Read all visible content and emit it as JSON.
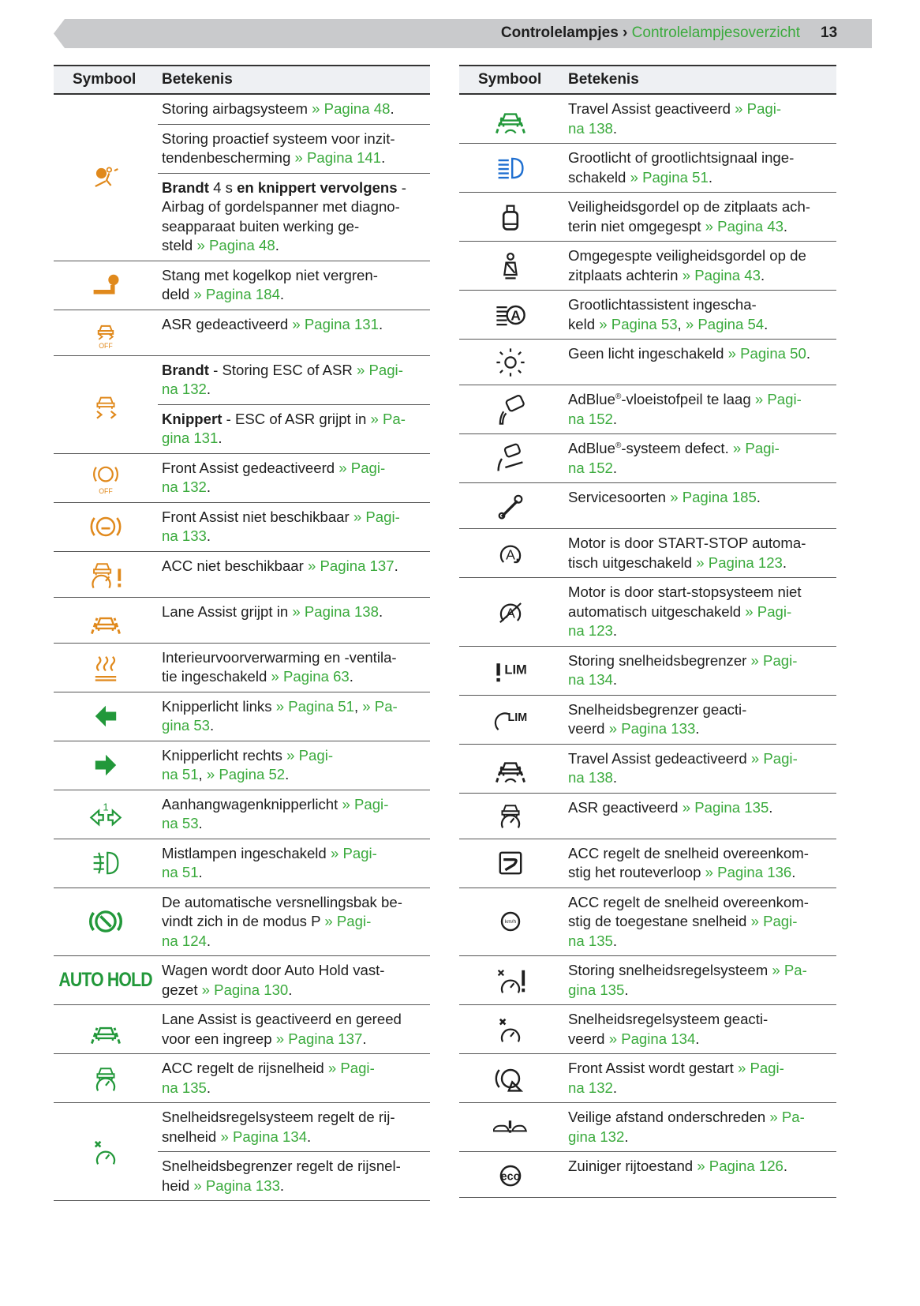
{
  "header": {
    "section": "Controlelampjes",
    "separator": " › ",
    "current": "Controlelampjesoverzicht",
    "page": "13"
  },
  "colors": {
    "orange": "#e0891c",
    "green": "#22983a",
    "link": "#3aaa3c",
    "blue": "#1f6fd0",
    "black": "#1e1e1e"
  },
  "columns": {
    "symbol": "Symbool",
    "meaning": "Betekenis"
  },
  "left": [
    {
      "icon": {
        "name": "airbag-icon",
        "color": "orange"
      },
      "rows": [
        [
          {
            "t": "Storing airbagsysteem "
          },
          {
            "l": "» Pagina 48"
          },
          {
            "t": "."
          }
        ],
        [
          {
            "t": "Storing proactief systeem voor inzit-\ntendenbescherming "
          },
          {
            "l": "» Pagina 141"
          },
          {
            "t": "."
          }
        ],
        [
          {
            "b": "Brandt"
          },
          {
            "t": " 4 s "
          },
          {
            "b": "en knippert vervolgens"
          },
          {
            "t": " -\nAirbag of gordelspanner met diagno-\nseapparaat buiten werking ge-\nsteld "
          },
          {
            "l": "» Pagina 48"
          },
          {
            "t": "."
          }
        ]
      ]
    },
    {
      "icon": {
        "name": "tow-bar-icon",
        "color": "orange"
      },
      "rows": [
        [
          {
            "t": "Stang met kogelkop niet vergren-\ndeld "
          },
          {
            "l": "» Pagina 184"
          },
          {
            "t": "."
          }
        ]
      ]
    },
    {
      "icon": {
        "name": "asr-off-icon",
        "color": "orange",
        "label": "OFF"
      },
      "rows": [
        [
          {
            "t": "ASR gedeactiveerd "
          },
          {
            "l": "» Pagina 131"
          },
          {
            "t": "."
          }
        ]
      ]
    },
    {
      "icon": {
        "name": "esc-skid-icon",
        "color": "orange"
      },
      "rows": [
        [
          {
            "b": "Brandt"
          },
          {
            "t": " - Storing ESC of ASR "
          },
          {
            "l": "» Pagi-\nna 132"
          },
          {
            "t": "."
          }
        ],
        [
          {
            "b": "Knippert"
          },
          {
            "t": " - ESC of ASR grijpt in "
          },
          {
            "l": "» Pa-\ngina 131"
          },
          {
            "t": "."
          }
        ]
      ]
    },
    {
      "icon": {
        "name": "front-assist-off-icon",
        "color": "orange",
        "label": "OFF"
      },
      "rows": [
        [
          {
            "t": "Front Assist gedeactiveerd "
          },
          {
            "l": "» Pagi-\nna 132"
          },
          {
            "t": "."
          }
        ]
      ]
    },
    {
      "icon": {
        "name": "front-assist-icon",
        "color": "orange"
      },
      "rows": [
        [
          {
            "t": "Front Assist niet beschikbaar "
          },
          {
            "l": "» Pagi-\nna 133"
          },
          {
            "t": "."
          }
        ]
      ]
    },
    {
      "icon": {
        "name": "acc-warning-icon",
        "color": "orange"
      },
      "rows": [
        [
          {
            "t": "ACC niet beschikbaar "
          },
          {
            "l": "» Pagina 137"
          },
          {
            "t": "."
          }
        ]
      ]
    },
    {
      "icon": {
        "name": "lane-assist-icon",
        "color": "orange"
      },
      "rows": [
        [
          {
            "t": "Lane Assist grijpt in "
          },
          {
            "l": "» Pagina 138"
          },
          {
            "t": "."
          }
        ]
      ]
    },
    {
      "icon": {
        "name": "heating-icon",
        "color": "orange"
      },
      "rows": [
        [
          {
            "t": "Interieurvoorverwarming en -ventila-\ntie ingeschakeld "
          },
          {
            "l": "» Pagina 63"
          },
          {
            "t": "."
          }
        ]
      ]
    },
    {
      "icon": {
        "name": "turn-left-icon",
        "color": "green"
      },
      "rows": [
        [
          {
            "t": "Knipperlicht links "
          },
          {
            "l": "» Pagina 51"
          },
          {
            "t": ", "
          },
          {
            "l": "» Pa-\ngina 53"
          },
          {
            "t": "."
          }
        ]
      ]
    },
    {
      "icon": {
        "name": "turn-right-icon",
        "color": "green"
      },
      "rows": [
        [
          {
            "t": "Knipperlicht rechts "
          },
          {
            "l": "» Pagi-\nna 51"
          },
          {
            "t": ", "
          },
          {
            "l": "» Pagina 52"
          },
          {
            "t": "."
          }
        ]
      ]
    },
    {
      "icon": {
        "name": "trailer-indicator-icon",
        "color": "green",
        "label": "1"
      },
      "rows": [
        [
          {
            "t": "Aanhangwagenknipperlicht "
          },
          {
            "l": "» Pagi-\nna 53"
          },
          {
            "t": "."
          }
        ]
      ]
    },
    {
      "icon": {
        "name": "fog-light-icon",
        "color": "green"
      },
      "rows": [
        [
          {
            "t": "Mistlampen ingeschakeld "
          },
          {
            "l": "» Pagi-\nna 51"
          },
          {
            "t": "."
          }
        ]
      ]
    },
    {
      "icon": {
        "name": "brake-p-icon",
        "color": "green"
      },
      "rows": [
        [
          {
            "t": "De automatische versnellingsbak be-\nvindt zich in de modus P "
          },
          {
            "l": "» Pagi-\nna 124"
          },
          {
            "t": "."
          }
        ]
      ]
    },
    {
      "icon": {
        "name": "auto-hold-icon",
        "color": "green",
        "label": "AUTO HOLD"
      },
      "rows": [
        [
          {
            "t": "Wagen wordt door Auto Hold vast-\ngezet "
          },
          {
            "l": "» Pagina 130"
          },
          {
            "t": "."
          }
        ]
      ]
    },
    {
      "icon": {
        "name": "lane-assist-ready-icon",
        "color": "green"
      },
      "rows": [
        [
          {
            "t": "Lane Assist is geactiveerd en gereed\nvoor een ingreep "
          },
          {
            "l": "» Pagina 137"
          },
          {
            "t": "."
          }
        ]
      ]
    },
    {
      "icon": {
        "name": "acc-active-icon",
        "color": "green"
      },
      "rows": [
        [
          {
            "t": "ACC regelt de rijsnelheid "
          },
          {
            "l": "» Pagi-\nna 135"
          },
          {
            "t": "."
          }
        ]
      ]
    },
    {
      "icon": {
        "name": "cruise-control-icon",
        "color": "green"
      },
      "rows": [
        [
          {
            "t": "Snelheidsregelsysteem regelt de rij-\nsnelheid "
          },
          {
            "l": "» Pagina 134"
          },
          {
            "t": "."
          }
        ],
        [
          {
            "t": "Snelheidsbegrenzer regelt de rijsnel-\nheid "
          },
          {
            "l": "» Pagina 133"
          },
          {
            "t": "."
          }
        ]
      ]
    }
  ],
  "right": [
    {
      "icon": {
        "name": "travel-assist-icon",
        "color": "green"
      },
      "rows": [
        [
          {
            "t": "Travel Assist geactiveerd "
          },
          {
            "l": "» Pagi-\nna 138"
          },
          {
            "t": "."
          }
        ]
      ]
    },
    {
      "icon": {
        "name": "high-beam-icon",
        "color": "blue"
      },
      "rows": [
        [
          {
            "t": "Grootlicht of grootlichtsignaal inge-\nschakeld "
          },
          {
            "l": "» Pagina 51"
          },
          {
            "t": "."
          }
        ]
      ]
    },
    {
      "icon": {
        "name": "rear-seatbelt-icon",
        "color": "black"
      },
      "rows": [
        [
          {
            "t": "Veiligheidsgordel op de zitplaats ach-\nterin niet omgegespt "
          },
          {
            "l": "» Pagina 43"
          },
          {
            "t": "."
          }
        ]
      ]
    },
    {
      "icon": {
        "name": "seatbelt-fastened-icon",
        "color": "black"
      },
      "rows": [
        [
          {
            "t": "Omgegespte veiligheidsgordel op de\nzitplaats achterin "
          },
          {
            "l": "» Pagina 43"
          },
          {
            "t": "."
          }
        ]
      ]
    },
    {
      "icon": {
        "name": "high-beam-assist-icon",
        "color": "black",
        "label": "A"
      },
      "rows": [
        [
          {
            "t": "Grootlichtassistent ingescha-\nkeld "
          },
          {
            "l": "» Pagina 53"
          },
          {
            "t": ", "
          },
          {
            "l": "» Pagina 54"
          },
          {
            "t": "."
          }
        ]
      ]
    },
    {
      "icon": {
        "name": "light-off-icon",
        "color": "black"
      },
      "rows": [
        [
          {
            "t": "Geen licht ingeschakeld "
          },
          {
            "l": "» Pagina 50"
          },
          {
            "t": "."
          }
        ]
      ]
    },
    {
      "icon": {
        "name": "adblue-level-icon",
        "color": "black"
      },
      "rows": [
        [
          {
            "t": "AdBlue"
          },
          {
            "s": "®"
          },
          {
            "t": "-vloeistofpeil te laag "
          },
          {
            "l": "» Pagi-\nna 152"
          },
          {
            "t": "."
          }
        ]
      ]
    },
    {
      "icon": {
        "name": "adblue-fault-icon",
        "color": "black"
      },
      "rows": [
        [
          {
            "t": "AdBlue"
          },
          {
            "s": "®"
          },
          {
            "t": "-systeem defect. "
          },
          {
            "l": "» Pagi-\nna 152"
          },
          {
            "t": "."
          }
        ]
      ]
    },
    {
      "icon": {
        "name": "wrench-icon",
        "color": "black"
      },
      "rows": [
        [
          {
            "t": "Servicesoorten "
          },
          {
            "l": "» Pagina 185"
          },
          {
            "t": "."
          }
        ]
      ]
    },
    {
      "icon": {
        "name": "start-stop-icon",
        "color": "black",
        "label": "A"
      },
      "rows": [
        [
          {
            "t": "Motor is door START-STOP automa-\ntisch uitgeschakeld "
          },
          {
            "l": "» Pagina 123"
          },
          {
            "t": "."
          }
        ]
      ]
    },
    {
      "icon": {
        "name": "start-stop-off-icon",
        "color": "black",
        "label": "A"
      },
      "rows": [
        [
          {
            "t": "Motor is door start-stopsysteem niet\nautomatisch uitgeschakeld "
          },
          {
            "l": "» Pagi-\nna 123"
          },
          {
            "t": "."
          }
        ]
      ]
    },
    {
      "icon": {
        "name": "limiter-fault-icon",
        "color": "black",
        "label": "LIM"
      },
      "rows": [
        [
          {
            "t": "Storing snelheidsbegrenzer "
          },
          {
            "l": "» Pagi-\nna 134"
          },
          {
            "t": "."
          }
        ]
      ]
    },
    {
      "icon": {
        "name": "limiter-icon",
        "color": "black",
        "label": "LIM"
      },
      "rows": [
        [
          {
            "t": "Snelheidsbegrenzer geacti-\nveerd "
          },
          {
            "l": "» Pagina 133"
          },
          {
            "t": "."
          }
        ]
      ]
    },
    {
      "icon": {
        "name": "travel-assist-off-icon",
        "color": "black"
      },
      "rows": [
        [
          {
            "t": "Travel Assist gedeactiveerd "
          },
          {
            "l": "» Pagi-\nna 138"
          },
          {
            "t": "."
          }
        ]
      ]
    },
    {
      "icon": {
        "name": "acc-car-gauge-icon",
        "color": "black"
      },
      "rows": [
        [
          {
            "t": "ASR geactiveerd "
          },
          {
            "l": "» Pagina 135"
          },
          {
            "t": "."
          }
        ]
      ]
    },
    {
      "icon": {
        "name": "acc-route-icon",
        "color": "black"
      },
      "rows": [
        [
          {
            "t": "ACC regelt de snelheid overeenkom-\nstig het routeverloop "
          },
          {
            "l": "» Pagina 136"
          },
          {
            "t": "."
          }
        ]
      ]
    },
    {
      "icon": {
        "name": "speed-sign-icon",
        "color": "black",
        "label": "km/h"
      },
      "rows": [
        [
          {
            "t": "ACC regelt de snelheid overeenkom-\nstig de toegestane snelheid "
          },
          {
            "l": "» Pagi-\nna 135"
          },
          {
            "t": "."
          }
        ]
      ]
    },
    {
      "icon": {
        "name": "cruise-fault-icon",
        "color": "black"
      },
      "rows": [
        [
          {
            "t": "Storing snelheidsregelsysteem "
          },
          {
            "l": "» Pa-\ngina 135"
          },
          {
            "t": "."
          }
        ]
      ]
    },
    {
      "icon": {
        "name": "cruise-active-icon",
        "color": "black"
      },
      "rows": [
        [
          {
            "t": "Snelheidsregelsysteem geacti-\nveerd "
          },
          {
            "l": "» Pagina 134"
          },
          {
            "t": "."
          }
        ]
      ]
    },
    {
      "icon": {
        "name": "front-assist-start-icon",
        "color": "black"
      },
      "rows": [
        [
          {
            "t": "Front Assist wordt gestart "
          },
          {
            "l": "» Pagi-\nna 132"
          },
          {
            "t": "."
          }
        ]
      ]
    },
    {
      "icon": {
        "name": "distance-warning-icon",
        "color": "black"
      },
      "rows": [
        [
          {
            "t": "Veilige afstand onderschreden "
          },
          {
            "l": "» Pa-\ngina 132"
          },
          {
            "t": "."
          }
        ]
      ]
    },
    {
      "icon": {
        "name": "eco-icon",
        "color": "black",
        "label": "eco"
      },
      "rows": [
        [
          {
            "t": "Zuiniger rijtoestand "
          },
          {
            "l": "» Pagina 126"
          },
          {
            "t": "."
          }
        ]
      ]
    }
  ]
}
